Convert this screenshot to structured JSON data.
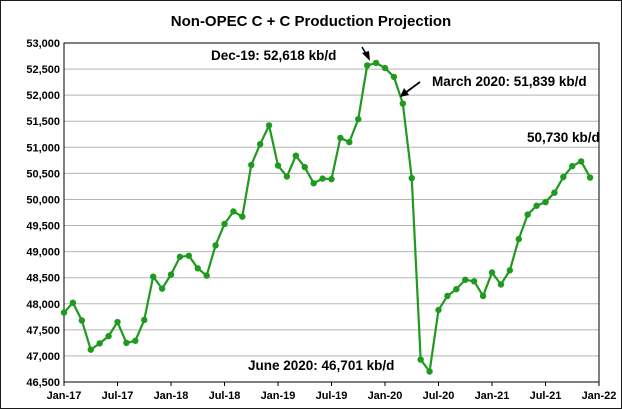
{
  "chart_data": {
    "type": "line",
    "title": "Non-OPEC C + C Production Projection",
    "xlabel": "",
    "ylabel": "",
    "ylim": [
      46500,
      53000
    ],
    "y_ticks": [
      "53,000",
      "52,500",
      "52,000",
      "51,500",
      "51,000",
      "50,500",
      "50,000",
      "49,500",
      "49,000",
      "48,500",
      "48,000",
      "47,500",
      "47,000",
      "46,500"
    ],
    "x_ticks": [
      "Jan-17",
      "Jul-17",
      "Jan-18",
      "Jul-18",
      "Jan-19",
      "Jul-19",
      "Jan-20",
      "Jul-20",
      "Jan-21",
      "Jul-21",
      "Jan-22"
    ],
    "grid": "horizontal",
    "line_color": "#1f9a1f",
    "x": [
      "Jan-17",
      "Feb-17",
      "Mar-17",
      "Apr-17",
      "May-17",
      "Jun-17",
      "Jul-17",
      "Aug-17",
      "Sep-17",
      "Oct-17",
      "Nov-17",
      "Dec-17",
      "Jan-18",
      "Feb-18",
      "Mar-18",
      "Apr-18",
      "May-18",
      "Jun-18",
      "Jul-18",
      "Aug-18",
      "Sep-18",
      "Oct-18",
      "Nov-18",
      "Dec-18",
      "Jan-19",
      "Feb-19",
      "Mar-19",
      "Apr-19",
      "May-19",
      "Jun-19",
      "Jul-19",
      "Aug-19",
      "Sep-19",
      "Oct-19",
      "Nov-19",
      "Dec-19",
      "Jan-20",
      "Feb-20",
      "Mar-20",
      "Apr-20",
      "May-20",
      "Jun-20",
      "Jul-20",
      "Aug-20",
      "Sep-20",
      "Oct-20",
      "Nov-20",
      "Dec-20",
      "Jan-21",
      "Feb-21",
      "Mar-21",
      "Apr-21",
      "May-21",
      "Jun-21",
      "Jul-21",
      "Aug-21",
      "Sep-21",
      "Oct-21",
      "Nov-21",
      "Dec-21"
    ],
    "series": [
      {
        "name": "",
        "values": [
          47830,
          48020,
          47680,
          47120,
          47240,
          47380,
          47650,
          47250,
          47290,
          47690,
          48520,
          48290,
          48560,
          48900,
          48920,
          48680,
          48540,
          49120,
          49530,
          49770,
          49670,
          50660,
          51060,
          51420,
          50650,
          50440,
          50840,
          50620,
          50310,
          50400,
          50390,
          51180,
          51100,
          51540,
          52570,
          52618,
          52520,
          52350,
          51839,
          50410,
          46930,
          46701,
          47880,
          48150,
          48280,
          48460,
          48430,
          48150,
          48600,
          48370,
          48640,
          49240,
          49710,
          49880,
          49950,
          50130,
          50430,
          50640,
          50730,
          50420
        ]
      }
    ],
    "annotations": [
      {
        "text": "Dec-19: 52,618 kb/d"
      },
      {
        "text": "March 2020: 51,839 kb/d"
      },
      {
        "text": "June 2020: 46,701 kb/d"
      },
      {
        "text": "50,730 kb/d"
      }
    ]
  }
}
